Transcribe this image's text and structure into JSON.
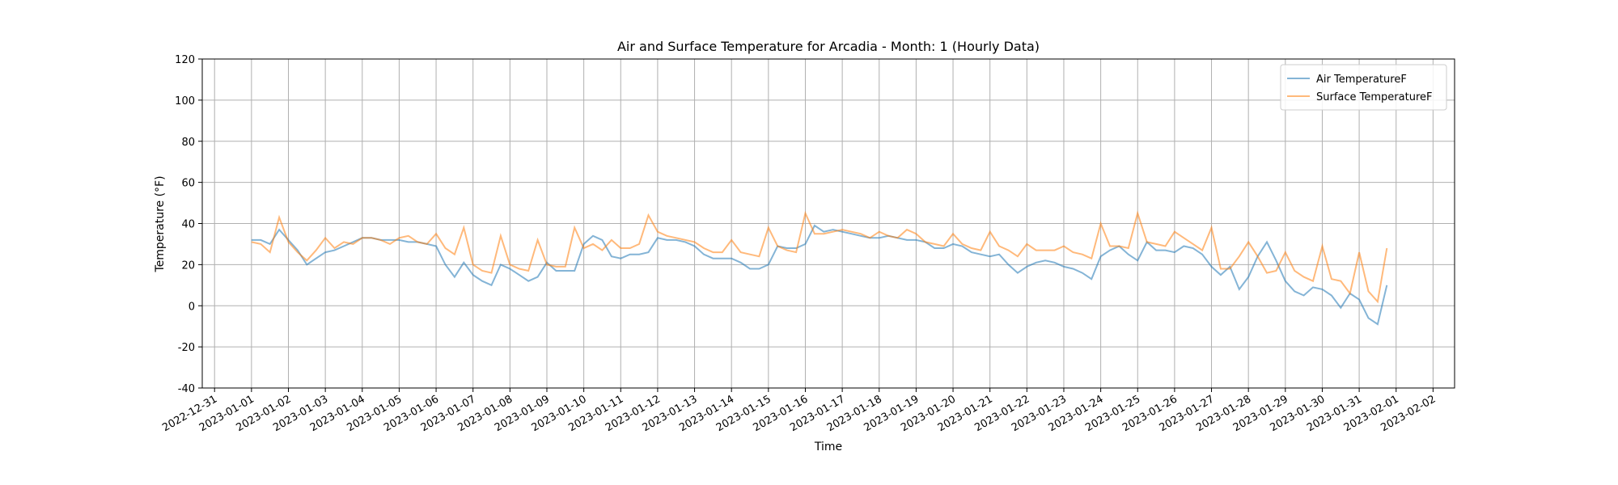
{
  "chart_data": {
    "type": "line",
    "title": "Air and Surface Temperature for Arcadia - Month: 1 (Hourly Data)",
    "x_label": "Time",
    "y_label": "Temperature (°F)",
    "x": [
      "2023-01-01 00:00",
      "2023-01-01 06:00",
      "2023-01-01 12:00",
      "2023-01-01 18:00",
      "2023-01-02 00:00",
      "2023-01-02 06:00",
      "2023-01-02 12:00",
      "2023-01-02 18:00",
      "2023-01-03 00:00",
      "2023-01-03 06:00",
      "2023-01-03 12:00",
      "2023-01-03 18:00",
      "2023-01-04 00:00",
      "2023-01-04 06:00",
      "2023-01-04 12:00",
      "2023-01-04 18:00",
      "2023-01-05 00:00",
      "2023-01-05 06:00",
      "2023-01-05 12:00",
      "2023-01-05 18:00",
      "2023-01-06 00:00",
      "2023-01-06 06:00",
      "2023-01-06 12:00",
      "2023-01-06 18:00",
      "2023-01-07 00:00",
      "2023-01-07 06:00",
      "2023-01-07 12:00",
      "2023-01-07 18:00",
      "2023-01-08 00:00",
      "2023-01-08 06:00",
      "2023-01-08 12:00",
      "2023-01-08 18:00",
      "2023-01-09 00:00",
      "2023-01-09 06:00",
      "2023-01-09 12:00",
      "2023-01-09 18:00",
      "2023-01-10 00:00",
      "2023-01-10 06:00",
      "2023-01-10 12:00",
      "2023-01-10 18:00",
      "2023-01-11 00:00",
      "2023-01-11 06:00",
      "2023-01-11 12:00",
      "2023-01-11 18:00",
      "2023-01-12 00:00",
      "2023-01-12 06:00",
      "2023-01-12 12:00",
      "2023-01-12 18:00",
      "2023-01-13 00:00",
      "2023-01-13 06:00",
      "2023-01-13 12:00",
      "2023-01-13 18:00",
      "2023-01-14 00:00",
      "2023-01-14 06:00",
      "2023-01-14 12:00",
      "2023-01-14 18:00",
      "2023-01-15 00:00",
      "2023-01-15 06:00",
      "2023-01-15 12:00",
      "2023-01-15 18:00",
      "2023-01-16 00:00",
      "2023-01-16 06:00",
      "2023-01-16 12:00",
      "2023-01-16 18:00",
      "2023-01-17 00:00",
      "2023-01-17 06:00",
      "2023-01-17 12:00",
      "2023-01-17 18:00",
      "2023-01-18 00:00",
      "2023-01-18 06:00",
      "2023-01-18 12:00",
      "2023-01-18 18:00",
      "2023-01-19 00:00",
      "2023-01-19 06:00",
      "2023-01-19 12:00",
      "2023-01-19 18:00",
      "2023-01-20 00:00",
      "2023-01-20 06:00",
      "2023-01-20 12:00",
      "2023-01-20 18:00",
      "2023-01-21 00:00",
      "2023-01-21 06:00",
      "2023-01-21 12:00",
      "2023-01-21 18:00",
      "2023-01-22 00:00",
      "2023-01-22 06:00",
      "2023-01-22 12:00",
      "2023-01-22 18:00",
      "2023-01-23 00:00",
      "2023-01-23 06:00",
      "2023-01-23 12:00",
      "2023-01-23 18:00",
      "2023-01-24 00:00",
      "2023-01-24 06:00",
      "2023-01-24 12:00",
      "2023-01-24 18:00",
      "2023-01-25 00:00",
      "2023-01-25 06:00",
      "2023-01-25 12:00",
      "2023-01-25 18:00",
      "2023-01-26 00:00",
      "2023-01-26 06:00",
      "2023-01-26 12:00",
      "2023-01-26 18:00",
      "2023-01-27 00:00",
      "2023-01-27 06:00",
      "2023-01-27 12:00",
      "2023-01-27 18:00",
      "2023-01-28 00:00",
      "2023-01-28 06:00",
      "2023-01-28 12:00",
      "2023-01-28 18:00",
      "2023-01-29 00:00",
      "2023-01-29 06:00",
      "2023-01-29 12:00",
      "2023-01-29 18:00",
      "2023-01-30 00:00",
      "2023-01-30 06:00",
      "2023-01-30 12:00",
      "2023-01-30 18:00",
      "2023-01-31 00:00",
      "2023-01-31 06:00",
      "2023-01-31 12:00",
      "2023-01-31 18:00"
    ],
    "series": [
      {
        "name": "Air TemperatureF",
        "color": "#1f77b4",
        "values": [
          32,
          32,
          30,
          37,
          32,
          27,
          20,
          23,
          26,
          27,
          29,
          31,
          33,
          33,
          32,
          32,
          32,
          31,
          31,
          30,
          29,
          20,
          14,
          21,
          15,
          12,
          10,
          20,
          18,
          15,
          12,
          14,
          21,
          17,
          17,
          17,
          30,
          34,
          32,
          24,
          23,
          25,
          25,
          26,
          33,
          32,
          32,
          31,
          29,
          25,
          23,
          23,
          23,
          21,
          18,
          18,
          20,
          29,
          28,
          28,
          30,
          39,
          36,
          37,
          36,
          35,
          34,
          33,
          33,
          34,
          33,
          32,
          32,
          31,
          28,
          28,
          30,
          29,
          26,
          25,
          24,
          25,
          20,
          16,
          19,
          21,
          22,
          21,
          19,
          18,
          16,
          13,
          24,
          27,
          29,
          25,
          22,
          31,
          27,
          27,
          26,
          29,
          28,
          25,
          19,
          15,
          19,
          8,
          14,
          24,
          31,
          22,
          12,
          7,
          5,
          9,
          8,
          5,
          -1,
          6,
          3,
          -6,
          -9,
          10
        ]
      },
      {
        "name": "Surface TemperatureF",
        "color": "#ff7f0e",
        "values": [
          31,
          30,
          26,
          43,
          31,
          26,
          22,
          27,
          33,
          28,
          31,
          30,
          33,
          33,
          32,
          30,
          33,
          34,
          31,
          30,
          35,
          28,
          25,
          38,
          20,
          17,
          16,
          34,
          20,
          18,
          17,
          32,
          20,
          19,
          19,
          38,
          28,
          30,
          27,
          32,
          28,
          28,
          30,
          44,
          36,
          34,
          33,
          32,
          31,
          28,
          26,
          26,
          32,
          26,
          25,
          24,
          38,
          29,
          27,
          26,
          45,
          35,
          35,
          36,
          37,
          36,
          35,
          33,
          36,
          34,
          33,
          37,
          35,
          31,
          30,
          29,
          35,
          30,
          28,
          27,
          36,
          29,
          27,
          24,
          30,
          27,
          27,
          27,
          29,
          26,
          25,
          23,
          40,
          29,
          29,
          28,
          45,
          31,
          30,
          29,
          36,
          33,
          30,
          27,
          38,
          18,
          18,
          24,
          31,
          24,
          16,
          17,
          26,
          17,
          14,
          12,
          29,
          13,
          12,
          6,
          26,
          7,
          2,
          28
        ]
      }
    ],
    "xlim": [
      "2022-12-30 16:00",
      "2023-02-02 14:00"
    ],
    "xticks": [
      "2022-12-31",
      "2023-01-01",
      "2023-01-02",
      "2023-01-03",
      "2023-01-04",
      "2023-01-05",
      "2023-01-06",
      "2023-01-07",
      "2023-01-08",
      "2023-01-09",
      "2023-01-10",
      "2023-01-11",
      "2023-01-12",
      "2023-01-13",
      "2023-01-14",
      "2023-01-15",
      "2023-01-16",
      "2023-01-17",
      "2023-01-18",
      "2023-01-19",
      "2023-01-20",
      "2023-01-21",
      "2023-01-22",
      "2023-01-23",
      "2023-01-24",
      "2023-01-25",
      "2023-01-26",
      "2023-01-27",
      "2023-01-28",
      "2023-01-29",
      "2023-01-30",
      "2023-01-31",
      "2023-02-01",
      "2023-02-02"
    ],
    "ylim": [
      -40,
      120
    ],
    "yticks": [
      -40,
      -20,
      0,
      20,
      40,
      60,
      80,
      100,
      120
    ],
    "grid": true,
    "legend": "upper right"
  }
}
